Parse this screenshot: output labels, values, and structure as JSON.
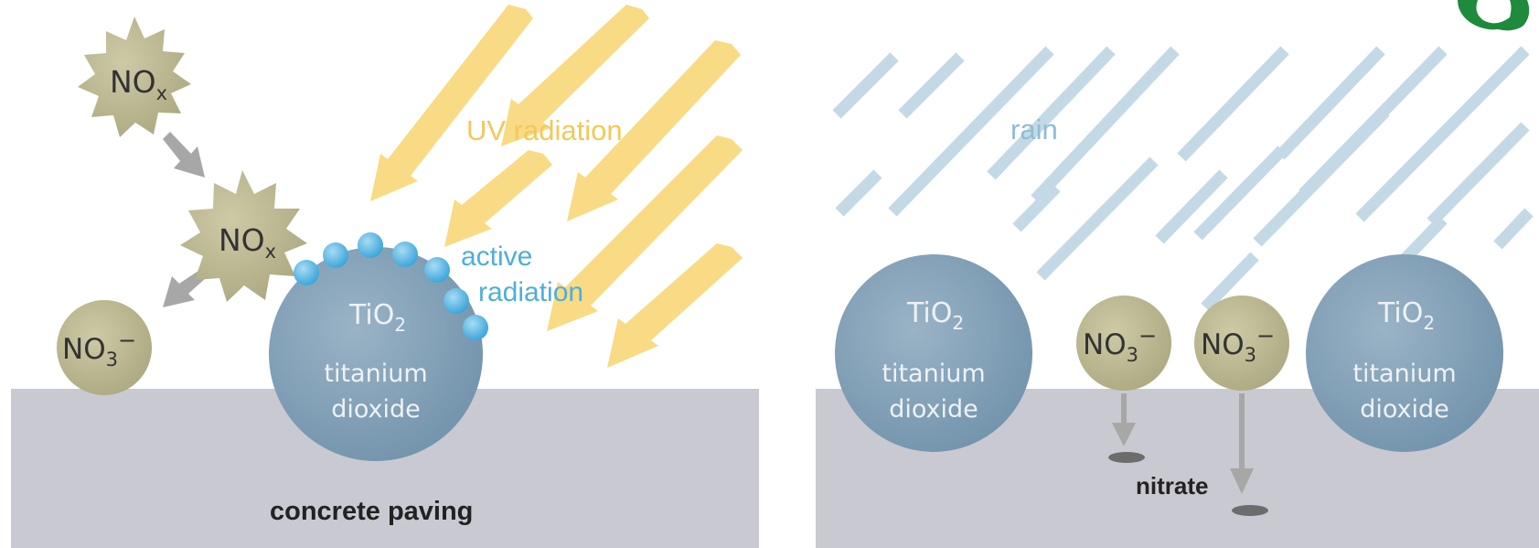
{
  "left_panel": {
    "molecule_a": {
      "base": "NO",
      "sub": "x"
    },
    "molecule_b": {
      "base": "NO",
      "sub": "x"
    },
    "molecule_c": {
      "base": "NO",
      "sub": "3",
      "sup": "−"
    },
    "uv_label": "UV radiation",
    "active_label_line1": "active",
    "active_label_line2": "radiation",
    "particle": {
      "base": "TiO",
      "sub": "2",
      "line1": "titanium",
      "line2": "dioxide"
    },
    "surface_label": "concrete paving"
  },
  "right_panel": {
    "rain_label": "rain",
    "particle_left": {
      "base": "TiO",
      "sub": "2",
      "line1": "titanium",
      "line2": "dioxide"
    },
    "particle_right": {
      "base": "TiO",
      "sub": "2",
      "line1": "titanium",
      "line2": "dioxide"
    },
    "nitrate_left": {
      "base": "NO",
      "sub": "3",
      "sup": "−"
    },
    "nitrate_right": {
      "base": "NO",
      "sub": "3",
      "sup": "−"
    },
    "nitrate_label": "nitrate"
  },
  "colors": {
    "pavement": "#c9c9d1",
    "tio2": "#7f9db3",
    "molecule": "#bcb892",
    "uv_arrow": "#f8db84",
    "uv_text": "#f2c85b",
    "active_dots": "#5bb6e3",
    "active_text": "#4eaed9",
    "rain": "#c4d9e6",
    "rain_text": "#8dbdd6",
    "gray_arrow": "#a7a7a7",
    "logo": "#1d8a3c"
  }
}
